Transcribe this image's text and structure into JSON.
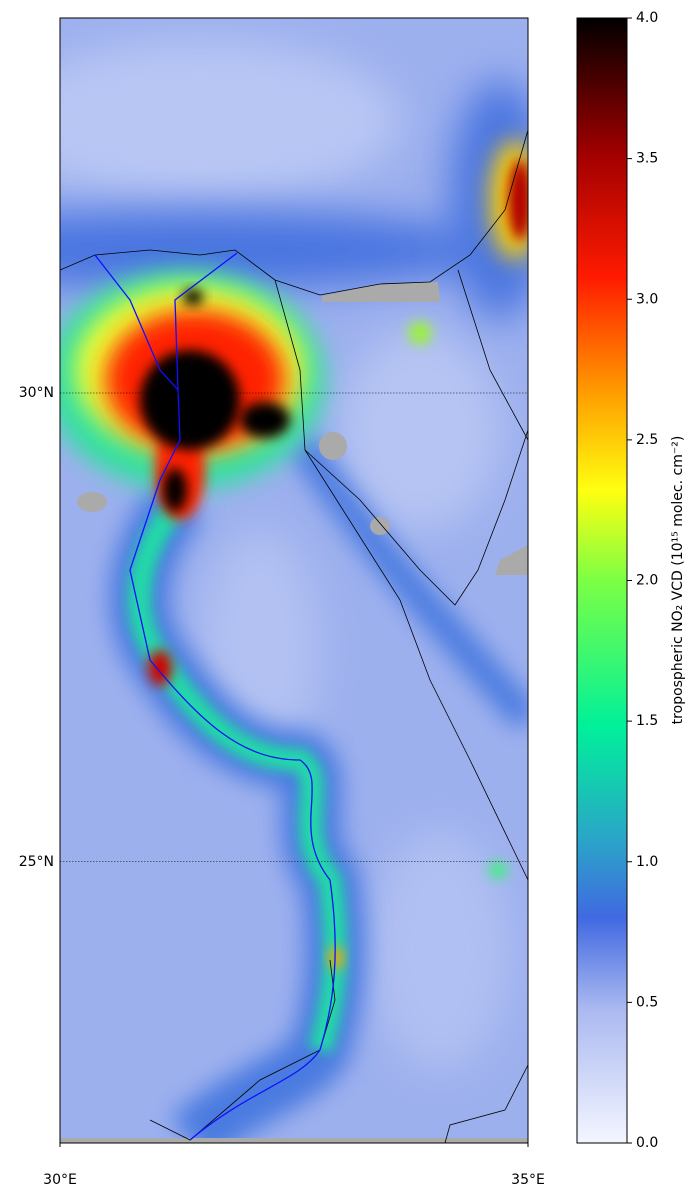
{
  "map": {
    "xlim": [
      30,
      35
    ],
    "ylim": [
      22,
      34
    ],
    "xticks": [
      {
        "value": 30,
        "label": "30°E"
      },
      {
        "value": 35,
        "label": "35°E"
      }
    ],
    "yticks": [
      {
        "value": 30,
        "label": "30°N"
      },
      {
        "value": 25,
        "label": "25°N"
      }
    ],
    "grid": true
  },
  "colorbar": {
    "lim": [
      0,
      4
    ],
    "ticks": [
      {
        "value": 0,
        "label": "0.0"
      },
      {
        "value": 0.5,
        "label": "0.5"
      },
      {
        "value": 1,
        "label": "1.0"
      },
      {
        "value": 1.5,
        "label": "1.5"
      },
      {
        "value": 2,
        "label": "2.0"
      },
      {
        "value": 2.5,
        "label": "2.5"
      },
      {
        "value": 3,
        "label": "3.0"
      },
      {
        "value": 3.5,
        "label": "3.5"
      },
      {
        "value": 4,
        "label": "4.0"
      }
    ],
    "label": "tropospheric NO₂ VCD (10¹⁵ molec. cm⁻²)"
  }
}
